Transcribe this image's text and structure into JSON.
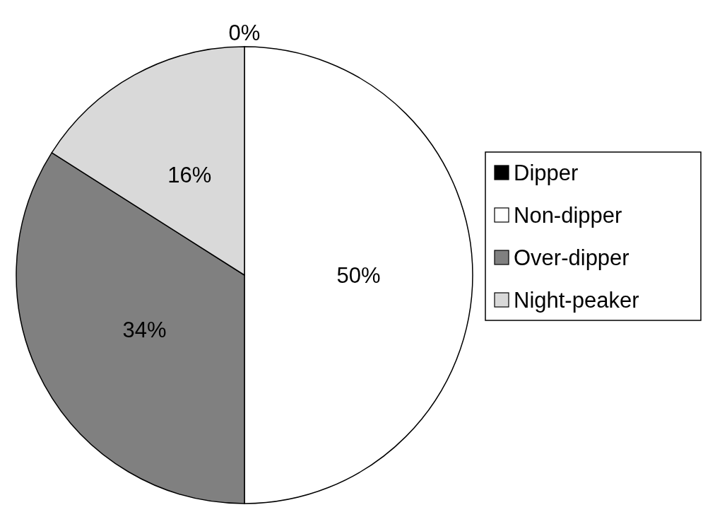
{
  "chart_data": {
    "type": "pie",
    "categories": [
      "Dipper",
      "Non-dipper",
      "Over-dipper",
      "Night-peaker"
    ],
    "values": [
      0,
      50,
      34,
      16
    ],
    "colors": [
      "#000000",
      "#ffffff",
      "#808080",
      "#d9d9d9"
    ],
    "value_labels": [
      "0%",
      "50%",
      "34%",
      "16%"
    ],
    "legend": "right"
  }
}
